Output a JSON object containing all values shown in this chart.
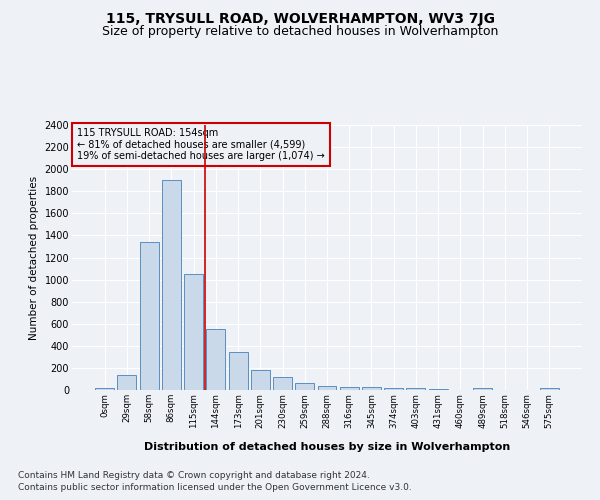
{
  "title": "115, TRYSULL ROAD, WOLVERHAMPTON, WV3 7JG",
  "subtitle": "Size of property relative to detached houses in Wolverhampton",
  "xlabel": "Distribution of detached houses by size in Wolverhampton",
  "ylabel": "Number of detached properties",
  "footnote1": "Contains HM Land Registry data © Crown copyright and database right 2024.",
  "footnote2": "Contains public sector information licensed under the Open Government Licence v3.0.",
  "bar_labels": [
    "0sqm",
    "29sqm",
    "58sqm",
    "86sqm",
    "115sqm",
    "144sqm",
    "173sqm",
    "201sqm",
    "230sqm",
    "259sqm",
    "288sqm",
    "316sqm",
    "345sqm",
    "374sqm",
    "403sqm",
    "431sqm",
    "460sqm",
    "489sqm",
    "518sqm",
    "546sqm",
    "575sqm"
  ],
  "bar_values": [
    15,
    135,
    1340,
    1900,
    1050,
    550,
    340,
    180,
    115,
    60,
    35,
    30,
    25,
    20,
    15,
    5,
    0,
    15,
    0,
    0,
    15
  ],
  "bar_color": "#c9d9ea",
  "bar_edge_color": "#5a8fbe",
  "ylim": [
    0,
    2400
  ],
  "yticks": [
    0,
    200,
    400,
    600,
    800,
    1000,
    1200,
    1400,
    1600,
    1800,
    2000,
    2200,
    2400
  ],
  "vline_x": 4.5,
  "vline_color": "#cc0000",
  "annotation_text": "115 TRYSULL ROAD: 154sqm\n← 81% of detached houses are smaller (4,599)\n19% of semi-detached houses are larger (1,074) →",
  "annotation_box_color": "#cc0000",
  "background_color": "#eef2f7",
  "grid_color": "#ffffff",
  "title_fontsize": 10,
  "subtitle_fontsize": 9,
  "footnote_fontsize": 6.5
}
